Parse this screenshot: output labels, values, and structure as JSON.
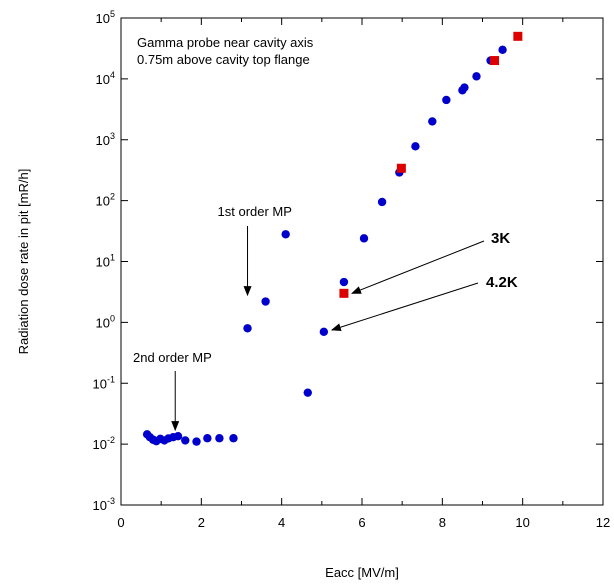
{
  "chart_data": {
    "type": "scatter",
    "title": "",
    "xlabel": "Eacc [MV/m]",
    "ylabel": "Radiation dose rate in pit [mR/h]",
    "xlim": [
      0,
      12
    ],
    "ylim": [
      0.001,
      100000
    ],
    "yscale": "log",
    "grid": false,
    "x_ticks": [
      {
        "value": 0,
        "label": "0"
      },
      {
        "value": 2,
        "label": "2"
      },
      {
        "value": 4,
        "label": "4"
      },
      {
        "value": 6,
        "label": "6"
      },
      {
        "value": 8,
        "label": "8"
      },
      {
        "value": 10,
        "label": "10"
      },
      {
        "value": 12,
        "label": "12"
      }
    ],
    "y_ticks": [
      {
        "value": 0.001,
        "base": "10",
        "exp": "-3"
      },
      {
        "value": 0.01,
        "base": "10",
        "exp": "-2"
      },
      {
        "value": 0.1,
        "base": "10",
        "exp": "-1"
      },
      {
        "value": 1,
        "base": "10",
        "exp": "0"
      },
      {
        "value": 10,
        "base": "10",
        "exp": "1"
      },
      {
        "value": 100,
        "base": "10",
        "exp": "2"
      },
      {
        "value": 1000,
        "base": "10",
        "exp": "3"
      },
      {
        "value": 10000,
        "base": "10",
        "exp": "4"
      },
      {
        "value": 100000,
        "base": "10",
        "exp": "5"
      }
    ],
    "info_lines": [
      "Gamma probe near cavity axis",
      "0.75m above cavity top flange"
    ],
    "series": [
      {
        "marker": "circle",
        "color": "#0000cc",
        "points": [
          [
            0.65,
            0.0145
          ],
          [
            0.72,
            0.013
          ],
          [
            0.8,
            0.0118
          ],
          [
            0.88,
            0.0112
          ],
          [
            0.98,
            0.0122
          ],
          [
            1.08,
            0.0115
          ],
          [
            1.18,
            0.0124
          ],
          [
            1.3,
            0.013
          ],
          [
            1.42,
            0.0135
          ],
          [
            1.6,
            0.0115
          ],
          [
            1.88,
            0.011
          ],
          [
            2.15,
            0.0125
          ],
          [
            2.45,
            0.0125
          ],
          [
            2.8,
            0.0125
          ],
          [
            3.15,
            0.8
          ],
          [
            3.6,
            2.2
          ],
          [
            4.1,
            28
          ],
          [
            4.65,
            0.07
          ],
          [
            5.05,
            0.7
          ],
          [
            5.55,
            4.6
          ],
          [
            6.05,
            24
          ],
          [
            6.5,
            95
          ],
          [
            6.93,
            290
          ],
          [
            7.33,
            780
          ],
          [
            7.75,
            2000
          ],
          [
            8.1,
            4500
          ],
          [
            8.5,
            6500
          ],
          [
            8.55,
            7200
          ],
          [
            8.85,
            11000
          ],
          [
            9.2,
            20000
          ],
          [
            9.5,
            30000
          ]
        ]
      },
      {
        "marker": "square",
        "color": "#dd0000",
        "points": [
          [
            5.55,
            3.0
          ],
          [
            6.98,
            340
          ],
          [
            9.3,
            20000
          ],
          [
            9.88,
            50000
          ]
        ]
      }
    ],
    "annotations": [
      {
        "label": "1st order MP",
        "target": [
          3.15,
          2.8
        ]
      },
      {
        "label": "2nd order MP",
        "target": [
          1.35,
          0.017
        ]
      },
      {
        "label": "3K",
        "target": [
          5.75,
          3.0
        ]
      },
      {
        "label": "4.2K",
        "target": [
          5.25,
          0.75
        ]
      }
    ]
  }
}
